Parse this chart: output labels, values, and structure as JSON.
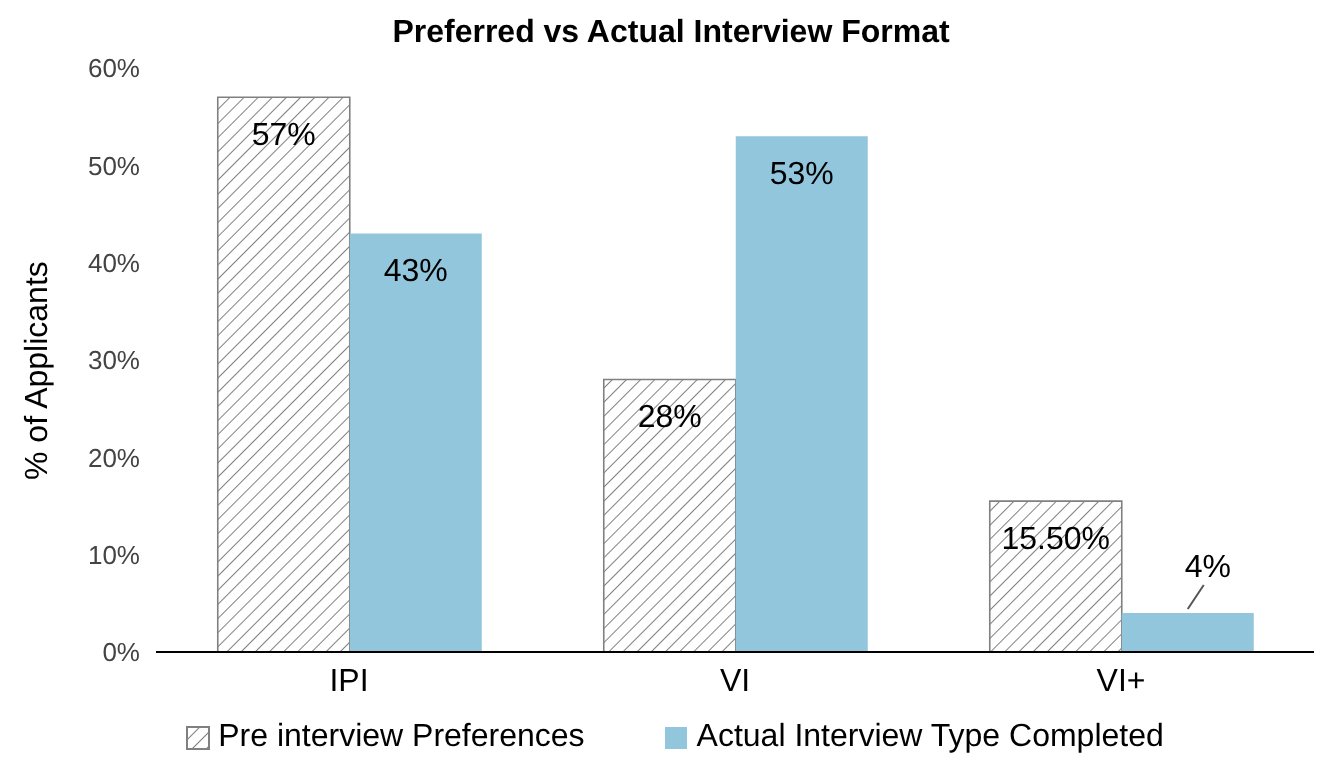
{
  "chart_data": {
    "type": "bar",
    "title": "Preferred  vs Actual Interview Format",
    "ylabel": "% of Applicants",
    "categories": [
      "IPI",
      "VI",
      "VI+"
    ],
    "series": [
      {
        "name": "Pre interview Preferences",
        "color": "#808080",
        "values": [
          57,
          28,
          15.5
        ],
        "value_labels": [
          "57%",
          "28%",
          "15.50%"
        ]
      },
      {
        "name": "Actual Interview Type Completed",
        "color": "#92c6dd",
        "values": [
          43,
          53,
          4
        ],
        "value_labels": [
          "43%",
          "53%",
          "4%"
        ]
      }
    ],
    "ylim": [
      0,
      60
    ],
    "yticks": [
      {
        "value": 0,
        "label": "0%"
      },
      {
        "value": 10,
        "label": "10%"
      },
      {
        "value": 20,
        "label": "20%"
      },
      {
        "value": 30,
        "label": "30%"
      },
      {
        "value": 40,
        "label": "40%"
      },
      {
        "value": 50,
        "label": "50%"
      },
      {
        "value": 60,
        "label": "60%"
      }
    ],
    "grid": false,
    "legend": "bottom"
  }
}
